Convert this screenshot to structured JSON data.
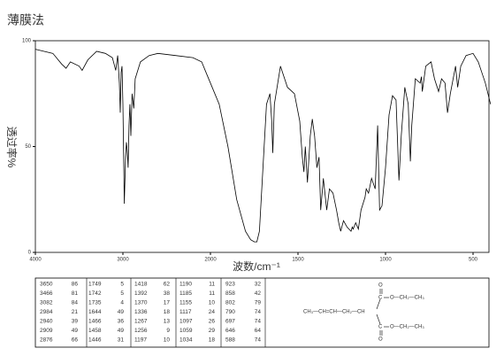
{
  "chart_data": {
    "type": "line",
    "title": "薄膜法",
    "y_label": "透过率%",
    "x_label": "波数/cm⁻¹",
    "xlim": [
      4000,
      400
    ],
    "ylim": [
      0,
      100
    ],
    "xticks": [
      4000,
      3000,
      2000,
      1500,
      1000,
      500
    ],
    "yticks": [
      0,
      50,
      100
    ],
    "x": [
      4000,
      3900,
      3800,
      3700,
      3650,
      3600,
      3500,
      3466,
      3400,
      3300,
      3200,
      3120,
      3082,
      3060,
      3040,
      3030,
      3020,
      3010,
      3000,
      2984,
      2970,
      2960,
      2950,
      2940,
      2930,
      2920,
      2909,
      2895,
      2876,
      2860,
      2800,
      2700,
      2600,
      2400,
      2200,
      2100,
      2050,
      2000,
      1950,
      1900,
      1850,
      1800,
      1770,
      1749,
      1735,
      1720,
      1700,
      1680,
      1660,
      1650,
      1644,
      1635,
      1600,
      1560,
      1520,
      1490,
      1475,
      1466,
      1458,
      1446,
      1430,
      1418,
      1405,
      1392,
      1380,
      1370,
      1355,
      1336,
      1320,
      1300,
      1280,
      1267,
      1256,
      1240,
      1220,
      1197,
      1190,
      1185,
      1170,
      1155,
      1140,
      1117,
      1110,
      1097,
      1080,
      1059,
      1045,
      1034,
      1020,
      1000,
      980,
      960,
      940,
      923,
      910,
      890,
      870,
      858,
      850,
      830,
      802,
      795,
      790,
      770,
      740,
      720,
      697,
      680,
      660,
      646,
      630,
      600,
      588,
      570,
      540,
      500,
      470,
      430,
      400
    ],
    "series": [
      {
        "color": "#000000",
        "values": [
          96,
          95,
          94,
          89,
          87,
          90,
          88,
          86,
          91,
          95,
          94,
          92,
          86,
          93,
          80,
          66,
          85,
          88,
          70,
          23,
          45,
          52,
          48,
          40,
          60,
          70,
          55,
          75,
          68,
          82,
          90,
          93,
          94,
          93,
          92,
          90,
          85,
          80,
          70,
          50,
          25,
          10,
          6,
          5,
          5,
          10,
          40,
          70,
          75,
          62,
          47,
          70,
          88,
          78,
          75,
          62,
          45,
          38,
          50,
          33,
          55,
          63,
          55,
          40,
          45,
          20,
          35,
          20,
          30,
          28,
          20,
          14,
          10,
          15,
          12,
          10,
          12,
          11,
          14,
          11,
          20,
          26,
          30,
          28,
          35,
          30,
          60,
          20,
          22,
          40,
          65,
          74,
          72,
          34,
          55,
          78,
          70,
          43,
          60,
          82,
          80,
          83,
          76,
          88,
          90,
          82,
          76,
          82,
          80,
          66,
          75,
          88,
          78,
          88,
          93,
          94,
          90,
          80,
          70
        ]
      }
    ]
  },
  "peak_table": {
    "rows": [
      [
        3650,
        86,
        1749,
        5,
        1418,
        62,
        1190,
        11,
        923,
        32
      ],
      [
        3466,
        81,
        1742,
        5,
        1392,
        38,
        1185,
        11,
        858,
        42
      ],
      [
        3082,
        84,
        1735,
        4,
        1370,
        17,
        1155,
        10,
        802,
        79
      ],
      [
        2984,
        21,
        1644,
        49,
        1336,
        18,
        1117,
        24,
        790,
        74
      ],
      [
        2940,
        39,
        1466,
        36,
        1267,
        13,
        1097,
        26,
        697,
        74
      ],
      [
        2909,
        49,
        1458,
        49,
        1256,
        9,
        1059,
        29,
        646,
        64
      ],
      [
        2876,
        66,
        1446,
        31,
        1197,
        10,
        1034,
        18,
        588,
        74
      ]
    ]
  },
  "structure": {
    "main_chain": "CH₃—CH=CH—CH₂—CH",
    "carbon_top": "C",
    "carbon_bottom": "C",
    "oxygen_top": "O",
    "oxygen_bottom": "O",
    "ester_top": "O—CH₂—CH₃",
    "ester_bottom": "O—CH₂—CH₃"
  }
}
